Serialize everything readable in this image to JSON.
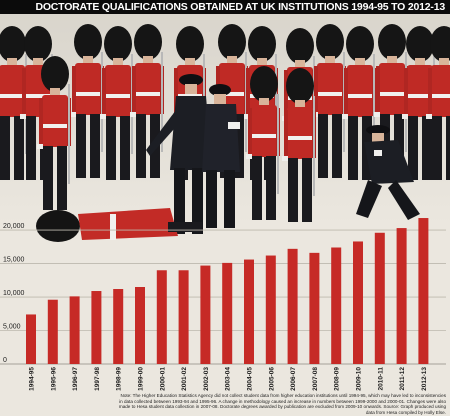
{
  "header": {
    "title": "DOCTORATE QUALIFICATIONS OBTAINED AT UK INSTITUTIONS 1994-95 TO 2012-13"
  },
  "chart_data": {
    "type": "bar",
    "title": "DOCTORATE QUALIFICATIONS OBTAINED AT UK INSTITUTIONS 1994-95 TO 2012-13",
    "xlabel": "",
    "ylabel": "",
    "ylim": [
      0,
      23000
    ],
    "yticks": [
      0,
      5000,
      10000,
      15000,
      20000
    ],
    "ytick_labels": [
      "0",
      "5,000",
      "10,000",
      "15,000",
      "20,000"
    ],
    "grid": true,
    "categories": [
      "1994-95",
      "1995-96",
      "1996-97",
      "1997-98",
      "1998-99",
      "1999-00",
      "2000-01",
      "2001-02",
      "2002-03",
      "2003-04",
      "2004-05",
      "2005-06",
      "2006-07",
      "2007-08",
      "2008-09",
      "2009-10",
      "2010-11",
      "2011-12",
      "2012-13"
    ],
    "values": [
      7400,
      9600,
      10100,
      10900,
      11200,
      11500,
      14000,
      14000,
      14700,
      15100,
      15600,
      16200,
      17200,
      16600,
      17400,
      18300,
      19600,
      20300,
      21800
    ],
    "colors": {
      "bar": "#c62a26",
      "grid": "#bdb8ae",
      "text": "#1c1c1c"
    }
  },
  "footnote": "Note: The Higher Education Statistics Agency did not collect student data from higher education institutions until 1994-95, which may have led to inconsistencies in data collected between 1993-94 and 1995-96. A change in methodology caused an increase in numbers between 1999-2000 and 2000-01. Changes were also made to Hesa student data collection in 2007-08. Doctorate degrees awarded by publication are excluded from 2009-10 onwards. Source: Graph produced using data from Hesa compiled by Holly Else."
}
